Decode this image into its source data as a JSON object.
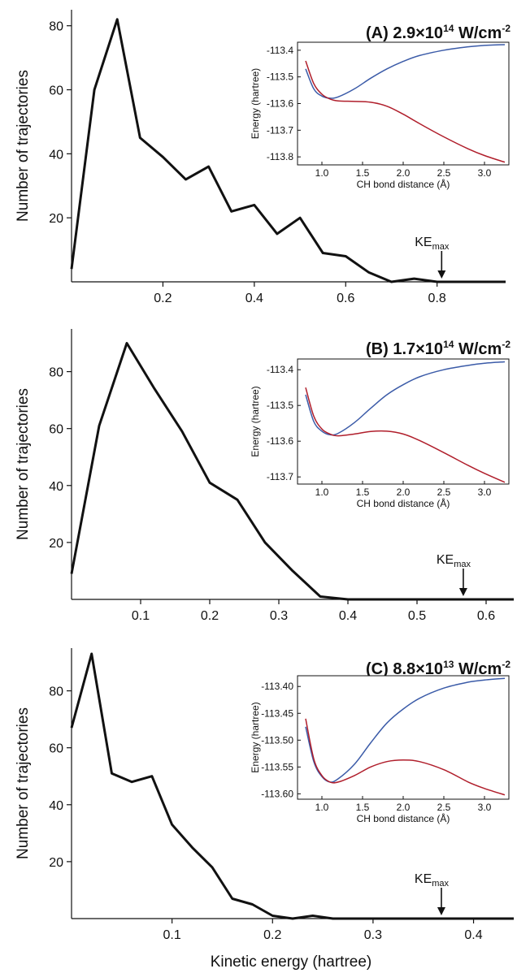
{
  "figure": {
    "xlabel": "Kinetic energy (hartree)"
  },
  "chart_data": [
    {
      "id": "A",
      "type": "line",
      "title_label": "(A)",
      "title_value": "2.9×10",
      "title_exp": "14",
      "title_unit": " W/cm",
      "title_unit_exp": "-2",
      "ylabel": "Number of  trajectories",
      "xlim": [
        0,
        0.95
      ],
      "ylim": [
        0,
        85
      ],
      "xticks": [
        0.2,
        0.4,
        0.6,
        0.8
      ],
      "xtick_labels": [
        "0.2",
        "0.4",
        "0.6",
        "0.8"
      ],
      "yticks": [
        20,
        40,
        60,
        80
      ],
      "ytick_labels": [
        "20",
        "40",
        "60",
        "80"
      ],
      "series": [
        {
          "color": "#111111",
          "x": [
            0,
            0.05,
            0.1,
            0.15,
            0.2,
            0.25,
            0.3,
            0.35,
            0.4,
            0.45,
            0.5,
            0.55,
            0.6,
            0.65,
            0.7,
            0.75,
            0.8,
            0.85,
            0.9,
            0.95
          ],
          "y": [
            4,
            60,
            82,
            45,
            39,
            32,
            36,
            22,
            24,
            15,
            20,
            9,
            8,
            3,
            0,
            1,
            0,
            0,
            0,
            0
          ]
        }
      ],
      "annotation": {
        "text": "KE",
        "sub": "max",
        "x": 0.81
      },
      "inset": {
        "xlabel": "CH bond distance (Å)",
        "ylabel": "Energy (hartree)",
        "xlim": [
          0.7,
          3.3
        ],
        "ylim": [
          -113.83,
          -113.37
        ],
        "xticks": [
          1.0,
          1.5,
          2.0,
          2.5,
          3.0
        ],
        "xtick_labels": [
          "1.0",
          "1.5",
          "2.0",
          "2.5",
          "3.0"
        ],
        "yticks": [
          -113.4,
          -113.5,
          -113.6,
          -113.7,
          -113.8
        ],
        "ytick_labels": [
          "-113.4",
          "-113.5",
          "-113.6",
          "-113.7",
          "-113.8"
        ],
        "series": [
          {
            "color": "#3b5ba8",
            "x": [
              0.8,
              0.9,
              1.0,
              1.1,
              1.2,
              1.4,
              1.6,
              1.8,
              2.0,
              2.2,
              2.5,
              2.8,
              3.0,
              3.25
            ],
            "y": [
              -113.47,
              -113.545,
              -113.572,
              -113.58,
              -113.575,
              -113.545,
              -113.505,
              -113.47,
              -113.442,
              -113.42,
              -113.4,
              -113.387,
              -113.382,
              -113.379
            ]
          },
          {
            "color": "#b01e2b",
            "x": [
              0.8,
              0.9,
              1.0,
              1.1,
              1.2,
              1.4,
              1.6,
              1.8,
              2.0,
              2.2,
              2.5,
              2.8,
              3.0,
              3.25
            ],
            "y": [
              -113.44,
              -113.525,
              -113.565,
              -113.583,
              -113.59,
              -113.592,
              -113.595,
              -113.61,
              -113.64,
              -113.675,
              -113.725,
              -113.77,
              -113.795,
              -113.82
            ]
          }
        ]
      }
    },
    {
      "id": "B",
      "type": "line",
      "title_label": "(B)",
      "title_value": "1.7×10",
      "title_exp": "14",
      "title_unit": " W/cm",
      "title_unit_exp": "-2",
      "ylabel": "Number of  trajectories",
      "xlim": [
        0,
        0.64
      ],
      "ylim": [
        0,
        95
      ],
      "xticks": [
        0.1,
        0.2,
        0.3,
        0.4,
        0.5,
        0.6
      ],
      "xtick_labels": [
        "0.1",
        "0.2",
        "0.3",
        "0.4",
        "0.5",
        "0.6"
      ],
      "yticks": [
        20,
        40,
        60,
        80
      ],
      "ytick_labels": [
        "20",
        "40",
        "60",
        "80"
      ],
      "series": [
        {
          "color": "#111111",
          "x": [
            0,
            0.04,
            0.08,
            0.12,
            0.16,
            0.2,
            0.24,
            0.28,
            0.32,
            0.36,
            0.4,
            0.44,
            0.48,
            0.52,
            0.56,
            0.6,
            0.64
          ],
          "y": [
            9,
            61,
            90,
            74,
            59,
            41,
            35,
            20,
            10,
            1,
            0,
            0,
            0,
            0,
            0,
            0,
            0
          ]
        }
      ],
      "annotation": {
        "text": "KE",
        "sub": "max",
        "x": 0.567
      },
      "inset": {
        "xlabel": "CH bond distance (Å)",
        "ylabel": "Energy (hartree)",
        "xlim": [
          0.7,
          3.3
        ],
        "ylim": [
          -113.72,
          -113.37
        ],
        "xticks": [
          1.0,
          1.5,
          2.0,
          2.5,
          3.0
        ],
        "xtick_labels": [
          "1.0",
          "1.5",
          "2.0",
          "2.5",
          "3.0"
        ],
        "yticks": [
          -113.4,
          -113.5,
          -113.6,
          -113.7
        ],
        "ytick_labels": [
          "-113.4",
          "-113.5",
          "-113.6",
          "-113.7"
        ],
        "series": [
          {
            "color": "#3b5ba8",
            "x": [
              0.8,
              0.9,
              1.0,
              1.1,
              1.2,
              1.4,
              1.6,
              1.8,
              2.0,
              2.2,
              2.5,
              2.8,
              3.0,
              3.25
            ],
            "y": [
              -113.47,
              -113.545,
              -113.572,
              -113.582,
              -113.578,
              -113.548,
              -113.508,
              -113.47,
              -113.442,
              -113.42,
              -113.4,
              -113.388,
              -113.382,
              -113.378
            ]
          },
          {
            "color": "#b01e2b",
            "x": [
              0.8,
              0.9,
              1.0,
              1.1,
              1.2,
              1.4,
              1.6,
              1.8,
              2.0,
              2.2,
              2.5,
              2.8,
              3.0,
              3.25
            ],
            "y": [
              -113.45,
              -113.53,
              -113.566,
              -113.58,
              -113.585,
              -113.58,
              -113.573,
              -113.572,
              -113.58,
              -113.598,
              -113.632,
              -113.668,
              -113.69,
              -113.715
            ]
          }
        ]
      }
    },
    {
      "id": "C",
      "type": "line",
      "title_label": "(C)",
      "title_value": "8.8×10",
      "title_exp": "13",
      "title_unit": " W/cm",
      "title_unit_exp": "-2",
      "ylabel": "Number of  trajectories",
      "xlim": [
        0,
        0.44
      ],
      "ylim": [
        0,
        95
      ],
      "xticks": [
        0.1,
        0.2,
        0.3,
        0.4
      ],
      "xtick_labels": [
        "0.1",
        "0.2",
        "0.3",
        "0.4"
      ],
      "yticks": [
        20,
        40,
        60,
        80
      ],
      "ytick_labels": [
        "20",
        "40",
        "60",
        "80"
      ],
      "series": [
        {
          "color": "#111111",
          "x": [
            0,
            0.02,
            0.04,
            0.06,
            0.08,
            0.1,
            0.12,
            0.14,
            0.16,
            0.18,
            0.2,
            0.22,
            0.24,
            0.26,
            0.28,
            0.3,
            0.32,
            0.34,
            0.36,
            0.38,
            0.4,
            0.42,
            0.44
          ],
          "y": [
            67,
            93,
            51,
            48,
            50,
            33,
            25,
            18,
            7,
            5,
            1,
            0,
            1,
            0,
            0,
            0,
            0,
            0,
            0,
            0,
            0,
            0,
            0
          ]
        }
      ],
      "annotation": {
        "text": "KE",
        "sub": "max",
        "x": 0.368
      },
      "inset": {
        "xlabel": "CH bond distance (Å)",
        "ylabel": "Energy (hartree)",
        "xlim": [
          0.7,
          3.3
        ],
        "ylim": [
          -113.61,
          -113.38
        ],
        "xticks": [
          1.0,
          1.5,
          2.0,
          2.5,
          3.0
        ],
        "xtick_labels": [
          "1.0",
          "1.5",
          "2.0",
          "2.5",
          "3.0"
        ],
        "yticks": [
          -113.4,
          -113.45,
          -113.5,
          -113.55,
          -113.6
        ],
        "ytick_labels": [
          "-113.40",
          "-113.45",
          "-113.50",
          "-113.55",
          "-113.60"
        ],
        "series": [
          {
            "color": "#3b5ba8",
            "x": [
              0.8,
              0.9,
              1.0,
              1.1,
              1.2,
              1.4,
              1.6,
              1.8,
              2.0,
              2.2,
              2.5,
              2.8,
              3.0,
              3.25
            ],
            "y": [
              -113.475,
              -113.54,
              -113.568,
              -113.578,
              -113.572,
              -113.545,
              -113.505,
              -113.468,
              -113.442,
              -113.422,
              -113.403,
              -113.392,
              -113.388,
              -113.385
            ]
          },
          {
            "color": "#b01e2b",
            "x": [
              0.8,
              0.9,
              1.0,
              1.1,
              1.2,
              1.4,
              1.6,
              1.8,
              2.0,
              2.2,
              2.5,
              2.8,
              3.0,
              3.25
            ],
            "y": [
              -113.46,
              -113.535,
              -113.566,
              -113.578,
              -113.578,
              -113.566,
              -113.55,
              -113.54,
              -113.537,
              -113.54,
              -113.555,
              -113.578,
              -113.59,
              -113.602
            ]
          }
        ]
      }
    }
  ]
}
